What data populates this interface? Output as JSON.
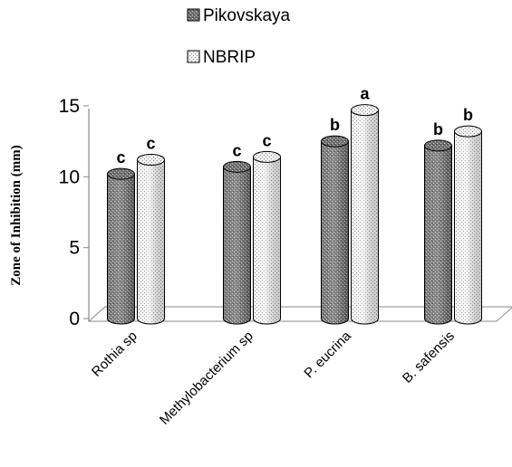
{
  "chart_data": {
    "type": "bar",
    "ylabel": "Zone of Inhibition (mm)",
    "xlabel": "",
    "ylim": [
      0,
      15
    ],
    "yticks": [
      0,
      5,
      10,
      15
    ],
    "categories": [
      "Rothia sp",
      "Methylobacterium sp",
      "P. eucrina",
      "B. safensis"
    ],
    "series": [
      {
        "name": "Pikovskaya",
        "values": [
          10.2,
          10.7,
          12.5,
          12.2
        ],
        "labels": [
          "c",
          "c",
          "b",
          "b"
        ]
      },
      {
        "name": "NBRIP",
        "values": [
          11.2,
          11.4,
          14.7,
          13.2
        ],
        "labels": [
          "c",
          "c",
          "a",
          "b"
        ]
      }
    ],
    "legend_position": "top"
  }
}
